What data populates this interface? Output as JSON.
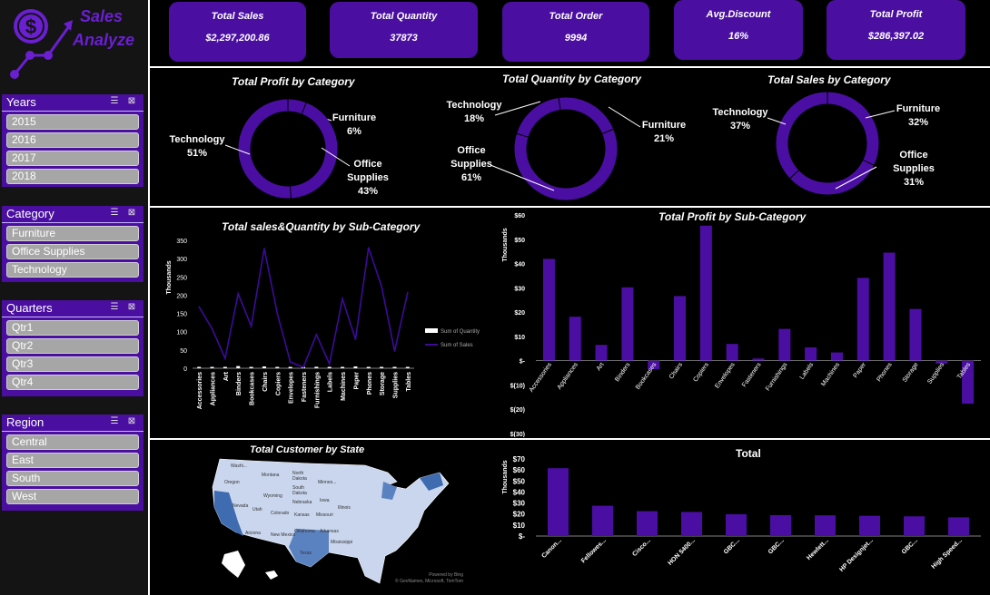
{
  "app": {
    "title_line1": "Sales",
    "title_line2": "Analyze"
  },
  "kpis": [
    {
      "title": "Total Sales",
      "value": "$2,297,200.86"
    },
    {
      "title": "Total Quantity",
      "value": "37873"
    },
    {
      "title": "Total Order",
      "value": "9994"
    },
    {
      "title": "Avg.Discount",
      "value": "16%"
    },
    {
      "title": "Total Profit",
      "value": "$286,397.02"
    }
  ],
  "slicers": {
    "years": {
      "title": "Years",
      "items": [
        "2015",
        "2016",
        "2017",
        "2018"
      ]
    },
    "category": {
      "title": "Category",
      "items": [
        "Furniture",
        "Office Supplies",
        "Technology"
      ]
    },
    "quarters": {
      "title": "Quarters",
      "items": [
        "Qtr1",
        "Qtr2",
        "Qtr3",
        "Qtr4"
      ]
    },
    "region": {
      "title": "Region",
      "items": [
        "Central",
        "East",
        "South",
        "West"
      ]
    }
  },
  "colors": {
    "accent": "#4a0fa0",
    "bar": "#4b0ea3",
    "line": "#3d0b99",
    "map_dark": "#3f6bb0",
    "map_light": "#c9d6ee"
  },
  "map": {
    "title": "Total Customer by State",
    "credit1": "Powered by Bing",
    "credit2": "© GeoNames, Microsoft, TomTom",
    "labels": [
      "Washi...",
      "Montana",
      "North",
      "Dakota",
      "South",
      "Dakota",
      "Oregon",
      "Wyoming",
      "Nebraska",
      "Iowa",
      "Nevada",
      "Utah",
      "Colorado",
      "Kansas",
      "Missouri",
      "Arizona",
      "New Mexico",
      "Oklahoma",
      "Arkansas",
      "Texas",
      "Illinois",
      "Minnes...",
      "Mississippi"
    ]
  },
  "chart_data": [
    {
      "type": "pie",
      "title": "Total Profit by Category",
      "categories": [
        "Technology",
        "Furniture",
        "Office Supplies"
      ],
      "values": [
        51,
        6,
        43
      ],
      "labels": [
        "51%",
        "6%",
        "43%"
      ]
    },
    {
      "type": "pie",
      "title": "Total Quantity by Category",
      "categories": [
        "Technology",
        "Furniture",
        "Office Supplies"
      ],
      "values": [
        18,
        21,
        61
      ],
      "labels": [
        "18%",
        "21%",
        "61%"
      ]
    },
    {
      "type": "pie",
      "title": "Total Sales by Category",
      "categories": [
        "Technology",
        "Furniture",
        "Office Supplies"
      ],
      "values": [
        37,
        32,
        31
      ],
      "labels": [
        "37%",
        "32%",
        "31%"
      ]
    },
    {
      "type": "line",
      "title": "Total sales&Quantity by Sub-Category",
      "ylabel": "Thousands",
      "ylim": [
        0,
        350
      ],
      "yticks": [
        "0",
        "50",
        "100",
        "150",
        "200",
        "250",
        "300",
        "350"
      ],
      "categories": [
        "Accessories",
        "Appliances",
        "Art",
        "Binders",
        "Bookcases",
        "Chairs",
        "Copiers",
        "Envelopes",
        "Fasteners",
        "Furnishings",
        "Labels",
        "Machines",
        "Paper",
        "Phones",
        "Storage",
        "Supplies",
        "Tables"
      ],
      "series": [
        {
          "name": "Sum of Quantity",
          "values": [
            3,
            3,
            3,
            6,
            1,
            5,
            1,
            2,
            2,
            4,
            1,
            1,
            5,
            3,
            3,
            1,
            1
          ]
        },
        {
          "name": "Sum of Sales",
          "values": [
            168,
            108,
            27,
            204,
            115,
            328,
            150,
            17,
            3,
            92,
            12,
            190,
            79,
            330,
            224,
            47,
            207
          ]
        }
      ]
    },
    {
      "type": "bar",
      "title": "Total Profit by Sub-Category",
      "ylabel": "Thousands",
      "ylim": [
        -30,
        60
      ],
      "yticks": [
        "$(30)",
        "$(20)",
        "$(10)",
        "$-",
        "$10",
        "$20",
        "$30",
        "$40",
        "$50",
        "$60"
      ],
      "categories": [
        "Accessories",
        "Appliances",
        "Art",
        "Binders",
        "Bookcases",
        "Chairs",
        "Copiers",
        "Envelopes",
        "Fasteners",
        "Furnishings",
        "Labels",
        "Machines",
        "Paper",
        "Phones",
        "Storage",
        "Supplies",
        "Tables"
      ],
      "values": [
        41.9,
        18.1,
        6.5,
        30.2,
        -3.5,
        26.6,
        55.6,
        6.9,
        0.9,
        13.1,
        5.5,
        3.4,
        34.1,
        44.5,
        21.3,
        -1.2,
        -17.7
      ]
    },
    {
      "type": "bar",
      "title": "Total",
      "ylabel": "Thousands",
      "ylim": [
        0,
        70
      ],
      "yticks": [
        "$-",
        "$10",
        "$20",
        "$30",
        "$40",
        "$50",
        "$60",
        "$70"
      ],
      "categories": [
        "Canon...",
        "Fellowes...",
        "Cisco...",
        "HON 5400...",
        "GBC...",
        "GBC...",
        "Hewlett...",
        "HP Designjet...",
        "GBC...",
        "High Speed..."
      ],
      "values": [
        61.6,
        27.5,
        22.6,
        21.9,
        19.8,
        19.0,
        18.8,
        18.4,
        17.9,
        17.0
      ]
    }
  ]
}
